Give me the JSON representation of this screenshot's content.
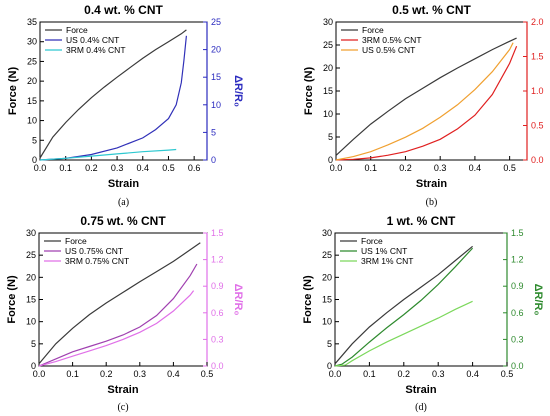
{
  "chart_data": [
    {
      "type": "line",
      "title": "0.4 wt. % CNT",
      "caption": "(a)",
      "xlabel": "Strain",
      "ylabel": "Force (N)",
      "y2label": "ΔR/R₀",
      "y2color": "#2b2bbf",
      "xlim": [
        0,
        0.65
      ],
      "xticks": [
        "0.0",
        "0.1",
        "0.2",
        "0.3",
        "0.4",
        "0.5",
        "0.6"
      ],
      "ylim": [
        0,
        35
      ],
      "yticks": [
        "0",
        "5",
        "10",
        "15",
        "20",
        "25",
        "30",
        "35"
      ],
      "y2lim": [
        0,
        25
      ],
      "y2ticks": [
        "0",
        "5",
        "10",
        "15",
        "20",
        "25"
      ],
      "legend": "top-left",
      "series": [
        {
          "name": "Force",
          "axis": "left",
          "color": "#3a3a3a",
          "x": [
            0,
            0.05,
            0.1,
            0.15,
            0.2,
            0.25,
            0.3,
            0.35,
            0.4,
            0.45,
            0.5,
            0.55,
            0.57
          ],
          "y": [
            0.5,
            5.8,
            9.5,
            12.8,
            15.8,
            18.5,
            21.0,
            23.4,
            25.8,
            28.0,
            30.0,
            32.0,
            33.0
          ]
        },
        {
          "name": "US 0.4% CNT",
          "axis": "right",
          "color": "#3030b8",
          "x": [
            0,
            0.1,
            0.2,
            0.3,
            0.4,
            0.45,
            0.5,
            0.53,
            0.55,
            0.56,
            0.57
          ],
          "y": [
            0,
            0.3,
            1.0,
            2.2,
            4.0,
            5.5,
            7.5,
            10.0,
            14.0,
            18.0,
            22.5
          ]
        },
        {
          "name": "3RM 0.4% CNT",
          "axis": "right",
          "color": "#2ec8d0",
          "x": [
            0,
            0.1,
            0.2,
            0.3,
            0.4,
            0.5,
            0.53
          ],
          "y": [
            0,
            0.3,
            0.7,
            1.1,
            1.5,
            1.8,
            1.9
          ]
        }
      ]
    },
    {
      "type": "line",
      "title": "0.5 wt. % CNT",
      "caption": "(b)",
      "xlabel": "Strain",
      "ylabel": "Force (N)",
      "y2label": "ΔR/R₀",
      "y2color": "#e02020",
      "xlim": [
        0,
        0.55
      ],
      "xticks": [
        "0.0",
        "0.1",
        "0.2",
        "0.3",
        "0.4",
        "0.5"
      ],
      "ylim": [
        0,
        30
      ],
      "yticks": [
        "0",
        "5",
        "10",
        "15",
        "20",
        "25",
        "30"
      ],
      "y2lim": [
        0,
        2.0
      ],
      "y2ticks": [
        "0.0",
        "0.5",
        "1.0",
        "1.5",
        "2.0"
      ],
      "legend": "top-left",
      "series": [
        {
          "name": "Force",
          "axis": "left",
          "color": "#3a3a3a",
          "x": [
            0,
            0.05,
            0.1,
            0.15,
            0.2,
            0.25,
            0.3,
            0.35,
            0.4,
            0.45,
            0.5,
            0.52
          ],
          "y": [
            1.0,
            4.5,
            7.8,
            10.6,
            13.3,
            15.6,
            17.9,
            20.0,
            22.0,
            24.0,
            25.8,
            26.5
          ]
        },
        {
          "name": "3RM 0.5% CNT",
          "axis": "right",
          "color": "#e02020",
          "x": [
            0,
            0.05,
            0.1,
            0.15,
            0.2,
            0.25,
            0.3,
            0.35,
            0.4,
            0.45,
            0.5,
            0.52
          ],
          "y": [
            0,
            0.01,
            0.03,
            0.07,
            0.12,
            0.2,
            0.3,
            0.45,
            0.65,
            0.95,
            1.4,
            1.65
          ]
        },
        {
          "name": "US 0.5% CNT",
          "axis": "right",
          "color": "#f0a030",
          "x": [
            0,
            0.05,
            0.1,
            0.15,
            0.2,
            0.25,
            0.3,
            0.35,
            0.4,
            0.45,
            0.5,
            0.51
          ],
          "y": [
            0,
            0.05,
            0.12,
            0.22,
            0.33,
            0.46,
            0.62,
            0.8,
            1.02,
            1.28,
            1.6,
            1.7
          ]
        }
      ]
    },
    {
      "type": "line",
      "title": "0.75 wt. % CNT",
      "caption": "(c)",
      "xlabel": "Strain",
      "ylabel": "Force (N)",
      "y2label": "ΔR/R₀",
      "y2color": "#e070e8",
      "xlim": [
        0,
        0.5
      ],
      "xticks": [
        "0.0",
        "0.1",
        "0.2",
        "0.3",
        "0.4",
        "0.5"
      ],
      "ylim": [
        0,
        30
      ],
      "yticks": [
        "0",
        "5",
        "10",
        "15",
        "20",
        "25",
        "30"
      ],
      "y2lim": [
        0,
        1.5
      ],
      "y2ticks": [
        "0.0",
        "0.3",
        "0.6",
        "0.9",
        "1.2",
        "1.5"
      ],
      "legend": "top-left",
      "series": [
        {
          "name": "Force",
          "axis": "left",
          "color": "#3a3a3a",
          "x": [
            0,
            0.05,
            0.1,
            0.15,
            0.2,
            0.25,
            0.3,
            0.35,
            0.4,
            0.45,
            0.48
          ],
          "y": [
            0.5,
            5.0,
            8.5,
            11.6,
            14.2,
            16.6,
            19.0,
            21.3,
            23.6,
            26.2,
            27.8
          ]
        },
        {
          "name": "US 0.75% CNT",
          "axis": "right",
          "color": "#a040b0",
          "x": [
            0,
            0.05,
            0.1,
            0.15,
            0.2,
            0.25,
            0.3,
            0.35,
            0.4,
            0.45,
            0.47
          ],
          "y": [
            0,
            0.08,
            0.16,
            0.22,
            0.28,
            0.35,
            0.44,
            0.57,
            0.76,
            1.02,
            1.15
          ]
        },
        {
          "name": "3RM 0.75% CNT",
          "axis": "right",
          "color": "#e070e8",
          "x": [
            0,
            0.05,
            0.1,
            0.15,
            0.2,
            0.25,
            0.3,
            0.35,
            0.4,
            0.45,
            0.46
          ],
          "y": [
            0,
            0.05,
            0.11,
            0.17,
            0.23,
            0.3,
            0.38,
            0.48,
            0.62,
            0.8,
            0.85
          ]
        }
      ]
    },
    {
      "type": "line",
      "title": "1 wt. % CNT",
      "caption": "(d)",
      "xlabel": "Strain",
      "ylabel": "Force (N)",
      "y2label": "ΔR/R₀",
      "y2color": "#2e8a2e",
      "xlim": [
        0,
        0.5
      ],
      "xticks": [
        "0.0",
        "0.1",
        "0.2",
        "0.3",
        "0.4",
        "0.5"
      ],
      "ylim": [
        0,
        30
      ],
      "yticks": [
        "0",
        "5",
        "10",
        "15",
        "20",
        "25",
        "30"
      ],
      "y2lim": [
        0,
        1.5
      ],
      "y2ticks": [
        "0.0",
        "0.3",
        "0.6",
        "0.9",
        "1.2",
        "1.5"
      ],
      "legend": "top-left",
      "series": [
        {
          "name": "Force",
          "axis": "left",
          "color": "#3a3a3a",
          "x": [
            0,
            0.05,
            0.1,
            0.15,
            0.2,
            0.25,
            0.3,
            0.35,
            0.4
          ],
          "y": [
            0.5,
            5.0,
            8.8,
            12.0,
            15.0,
            17.8,
            20.6,
            23.8,
            27.0
          ]
        },
        {
          "name": "US 1% CNT",
          "axis": "right",
          "color": "#2e8a2e",
          "x": [
            0,
            0.02,
            0.05,
            0.1,
            0.15,
            0.2,
            0.25,
            0.3,
            0.35,
            0.4
          ],
          "y": [
            0,
            0.02,
            0.1,
            0.27,
            0.43,
            0.58,
            0.74,
            0.92,
            1.12,
            1.33
          ]
        },
        {
          "name": "3RM 1% CNT",
          "axis": "right",
          "color": "#7cd85c",
          "x": [
            0,
            0.03,
            0.05,
            0.1,
            0.15,
            0.2,
            0.25,
            0.3,
            0.35,
            0.4
          ],
          "y": [
            0,
            0.01,
            0.06,
            0.17,
            0.27,
            0.36,
            0.45,
            0.54,
            0.64,
            0.73
          ]
        }
      ]
    }
  ]
}
